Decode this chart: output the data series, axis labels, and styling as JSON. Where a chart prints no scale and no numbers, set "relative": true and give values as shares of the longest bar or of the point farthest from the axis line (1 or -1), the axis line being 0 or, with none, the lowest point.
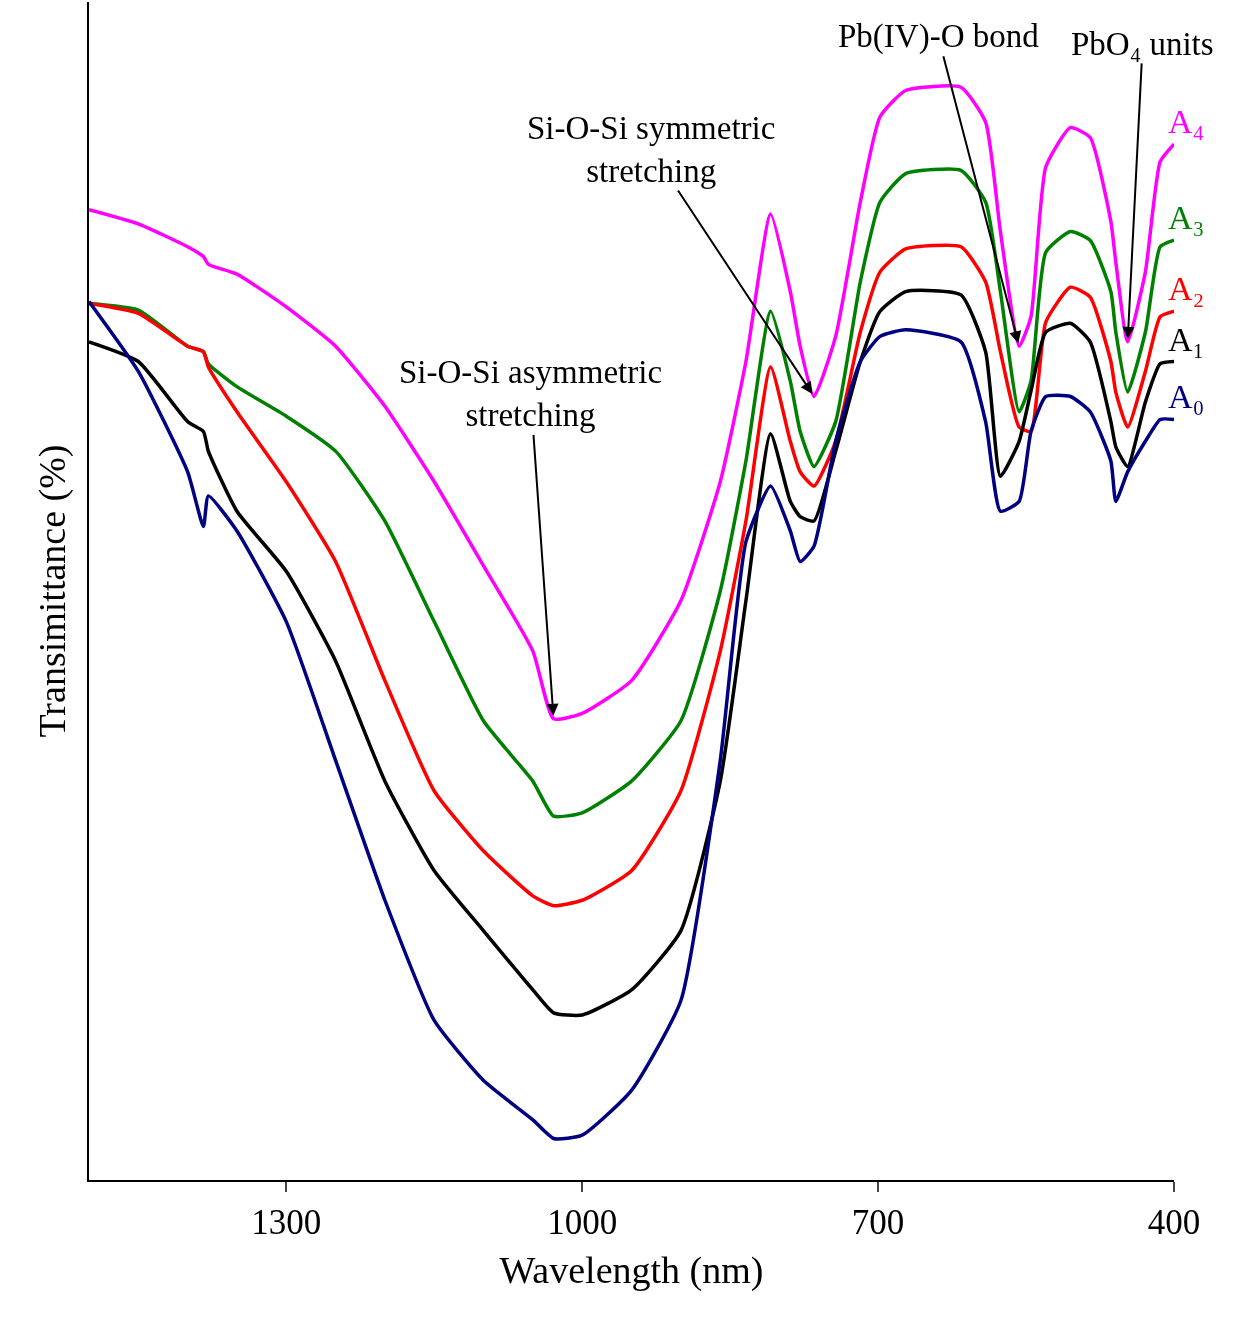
{
  "chart_data": {
    "type": "line",
    "relative": true,
    "xlabel": "Wavelength (nm)",
    "ylabel": "Transimittance (%)",
    "xlim": [
      1500,
      400
    ],
    "xticks": [
      1300,
      1000,
      700,
      400
    ],
    "tick_labels": "x",
    "legend": "right",
    "marker": "none",
    "line_style": "solid",
    "x": [
      1500,
      1450,
      1400,
      1384,
      1379,
      1350,
      1300,
      1250,
      1200,
      1150,
      1100,
      1050,
      1029,
      1000,
      950,
      900,
      860,
      834,
      809,
      789,
      779,
      765,
      743,
      718,
      698,
      672,
      616,
      591,
      576,
      557,
      545,
      530,
      505,
      485,
      464,
      459,
      447,
      429,
      414,
      400
    ],
    "series": [
      {
        "name": "A₄",
        "color": "#ff00ff",
        "values": [
          0.888,
          0.875,
          0.854,
          0.845,
          0.838,
          0.829,
          0.799,
          0.763,
          0.708,
          0.639,
          0.562,
          0.484,
          0.422,
          0.427,
          0.457,
          0.53,
          0.639,
          0.749,
          0.884,
          0.813,
          0.763,
          0.717,
          0.772,
          0.895,
          0.973,
          0.997,
          1.0,
          0.968,
          0.868,
          0.763,
          0.79,
          0.927,
          0.963,
          0.954,
          0.877,
          0.84,
          0.767,
          0.831,
          0.932,
          0.948
        ]
      },
      {
        "name": "A₃",
        "color": "#008000",
        "values": [
          0.802,
          0.796,
          0.763,
          0.758,
          0.747,
          0.726,
          0.699,
          0.667,
          0.603,
          0.511,
          0.42,
          0.365,
          0.333,
          0.336,
          0.365,
          0.42,
          0.539,
          0.658,
          0.795,
          0.731,
          0.685,
          0.653,
          0.694,
          0.822,
          0.895,
          0.921,
          0.924,
          0.895,
          0.813,
          0.703,
          0.731,
          0.849,
          0.868,
          0.86,
          0.813,
          0.776,
          0.721,
          0.776,
          0.854,
          0.86
        ]
      },
      {
        "name": "A₂",
        "color": "#ff0000",
        "values": [
          0.802,
          0.793,
          0.763,
          0.758,
          0.744,
          0.703,
          0.639,
          0.566,
          0.457,
          0.356,
          0.301,
          0.26,
          0.251,
          0.256,
          0.283,
          0.356,
          0.484,
          0.603,
          0.744,
          0.676,
          0.648,
          0.635,
          0.676,
          0.776,
          0.831,
          0.852,
          0.854,
          0.822,
          0.758,
          0.689,
          0.685,
          0.785,
          0.817,
          0.808,
          0.749,
          0.721,
          0.689,
          0.74,
          0.79,
          0.795
        ]
      },
      {
        "name": "A₁",
        "color": "#000000",
        "values": [
          0.767,
          0.749,
          0.694,
          0.685,
          0.667,
          0.612,
          0.557,
          0.475,
          0.365,
          0.283,
          0.228,
          0.174,
          0.153,
          0.151,
          0.174,
          0.228,
          0.365,
          0.53,
          0.683,
          0.621,
          0.607,
          0.603,
          0.667,
          0.749,
          0.795,
          0.813,
          0.81,
          0.758,
          0.644,
          0.676,
          0.722,
          0.776,
          0.784,
          0.767,
          0.694,
          0.671,
          0.653,
          0.712,
          0.747,
          0.749
        ]
      },
      {
        "name": "A₀",
        "color": "#000080",
        "values": [
          0.804,
          0.74,
          0.648,
          0.598,
          0.626,
          0.594,
          0.511,
          0.384,
          0.256,
          0.146,
          0.091,
          0.055,
          0.038,
          0.041,
          0.082,
          0.164,
          0.384,
          0.584,
          0.635,
          0.594,
          0.566,
          0.58,
          0.676,
          0.749,
          0.772,
          0.778,
          0.767,
          0.694,
          0.612,
          0.621,
          0.685,
          0.717,
          0.717,
          0.703,
          0.658,
          0.621,
          0.648,
          0.676,
          0.696,
          0.696
        ]
      }
    ],
    "annotations": [
      {
        "text": "Si-O-Si asymmetric\nstretching",
        "x": 1029,
        "y": 0.422
      },
      {
        "text": "Si-O-Si symmetric\nstretching",
        "x": 765,
        "y": 0.717
      },
      {
        "text": "Pb(IV)-O bond",
        "x": 557,
        "y": 0.763
      },
      {
        "text": "PbO₄ units",
        "x": 447,
        "y": 0.767
      }
    ]
  }
}
